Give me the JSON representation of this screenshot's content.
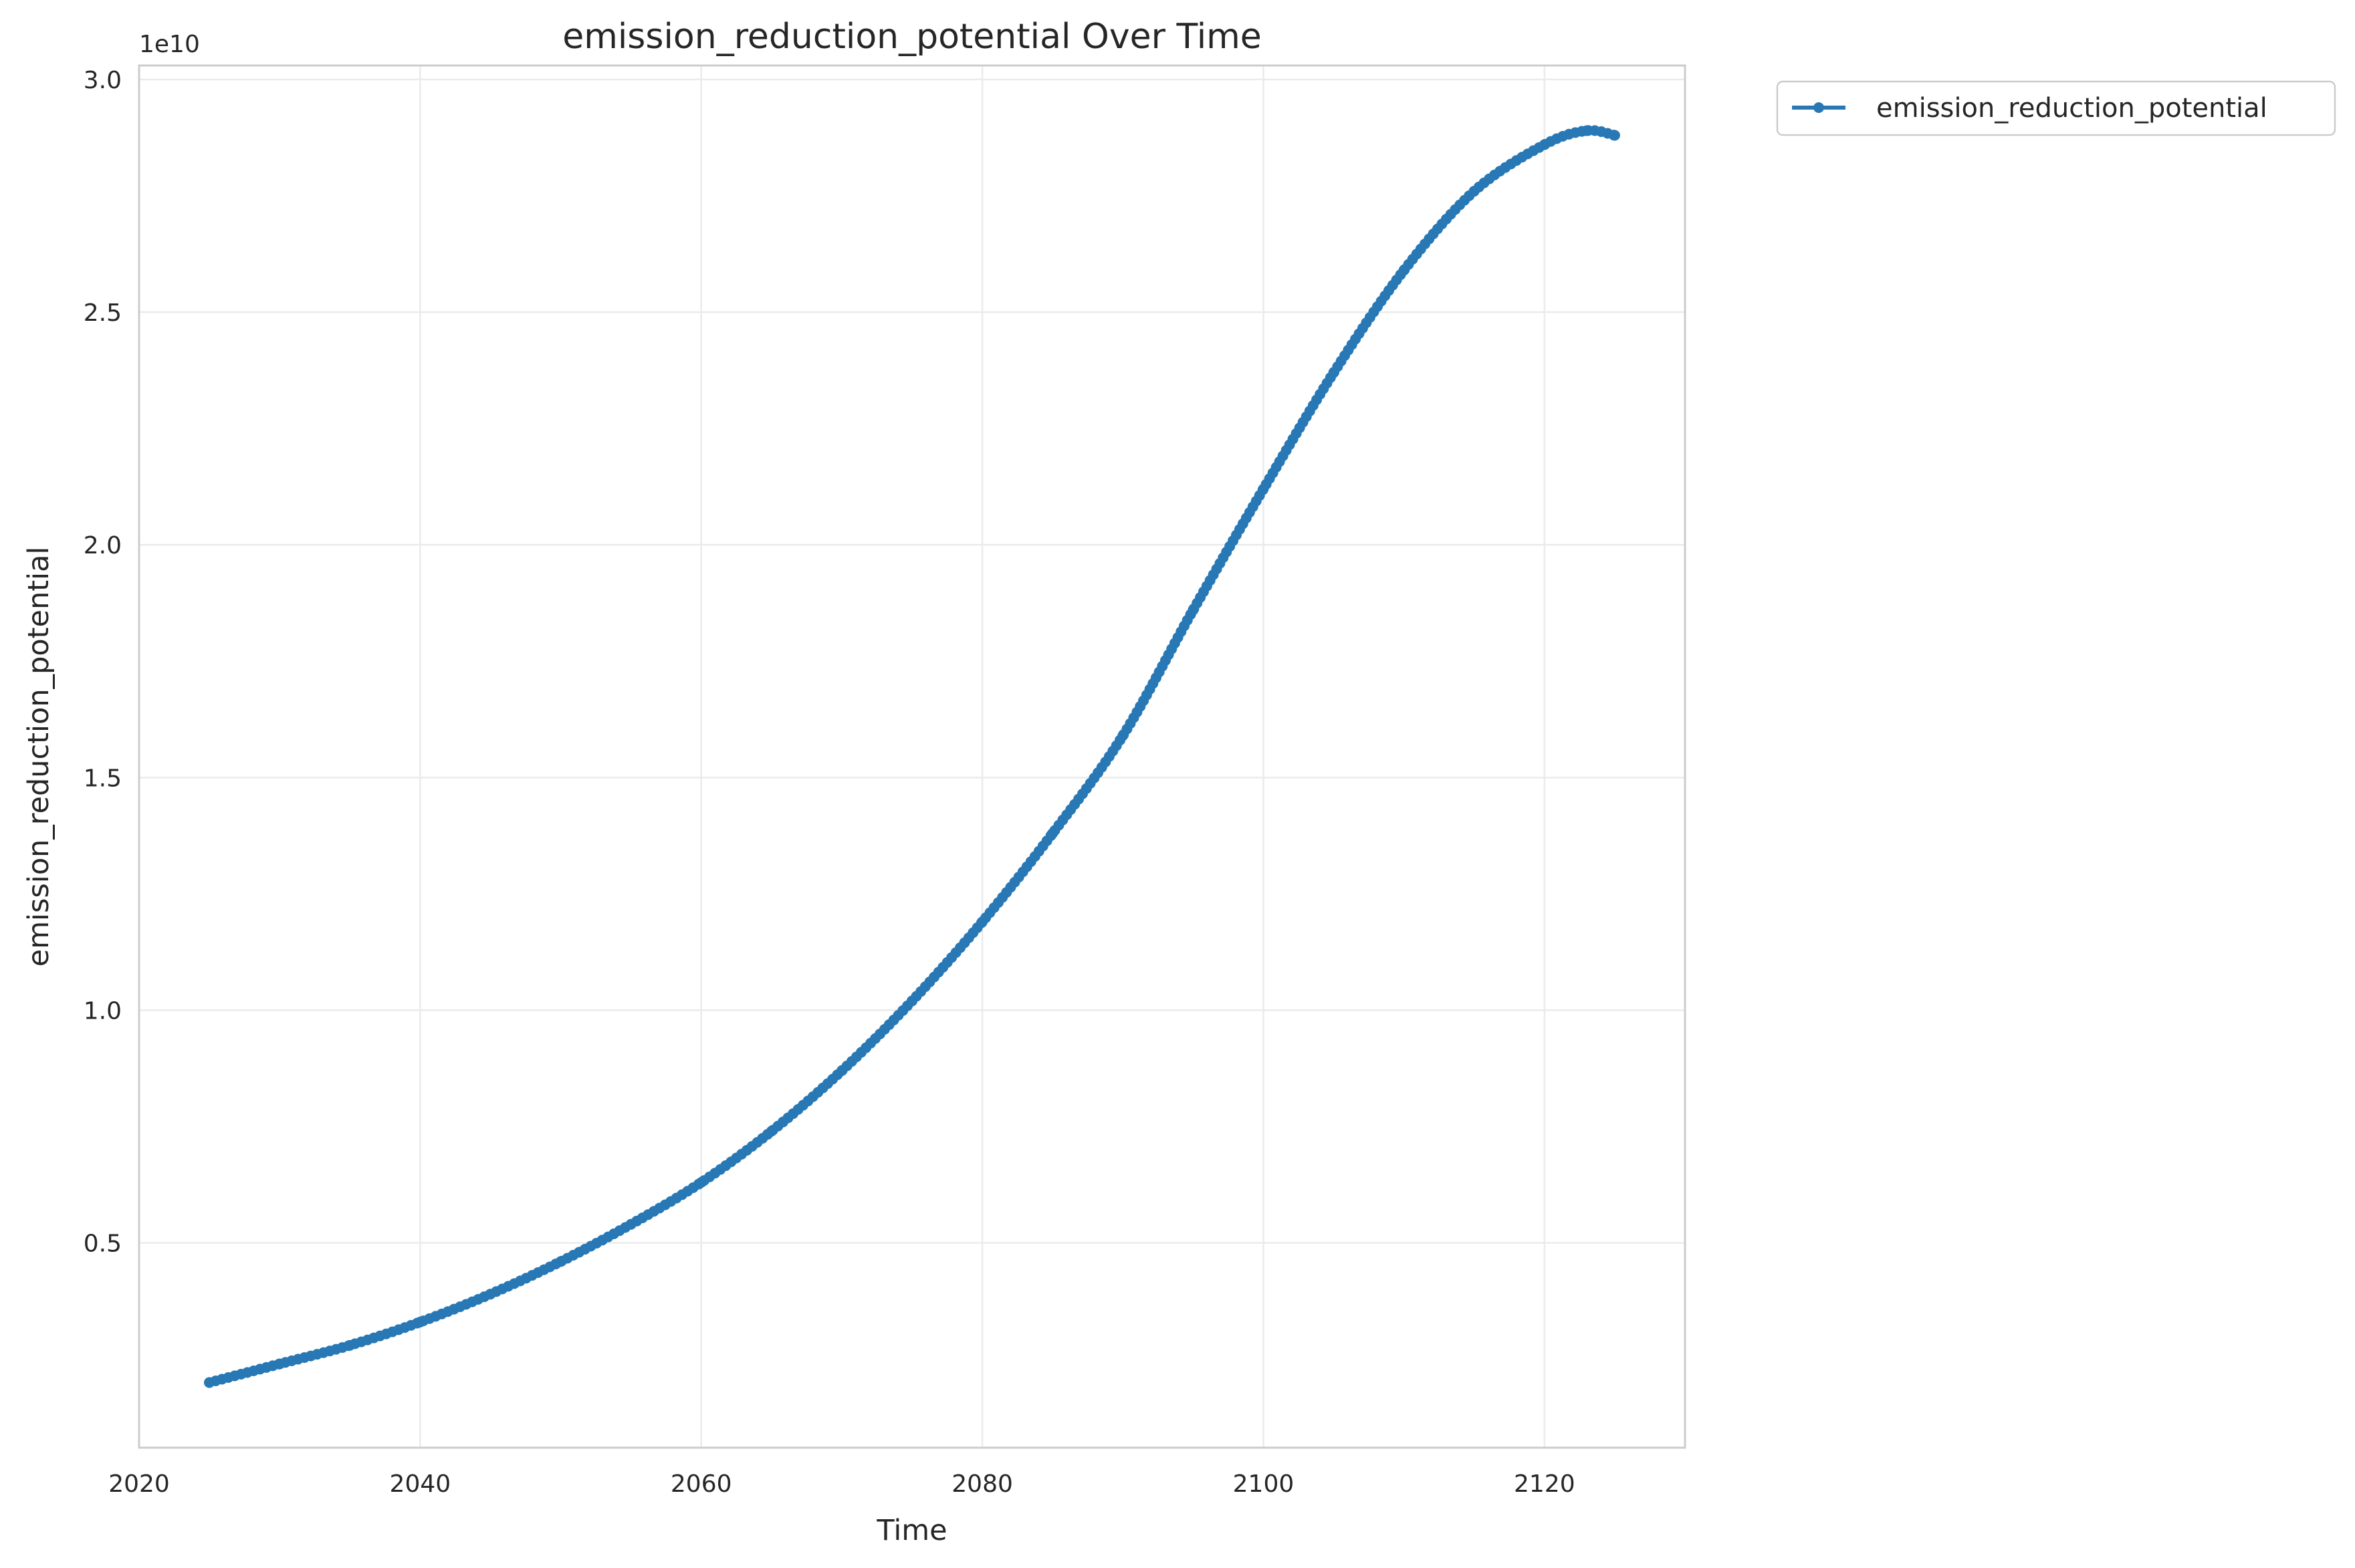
{
  "chart_data": {
    "type": "line",
    "title": "emission_reduction_potential Over Time",
    "xlabel": "Time",
    "ylabel": "emission_reduction_potential",
    "y_offset_label": "1e10",
    "xlim": [
      2020,
      2130
    ],
    "ylim": [
      0.06,
      3.03
    ],
    "y_scale_multiplier": 10000000000,
    "x_ticks": [
      2020,
      2040,
      2060,
      2080,
      2100,
      2120
    ],
    "x_tick_labels": [
      "2020",
      "2040",
      "2060",
      "2080",
      "2100",
      "2120"
    ],
    "y_ticks": [
      0.5,
      1.0,
      1.5,
      2.0,
      2.5,
      3.0
    ],
    "y_tick_labels": [
      "0.5",
      "1.0",
      "1.5",
      "2.0",
      "2.5",
      "3.0"
    ],
    "grid": true,
    "legend_position": "outside-top-right",
    "marker": "circle",
    "series": [
      {
        "name": "emission_reduction_potential",
        "color": "#2878b5",
        "x": [
          2025,
          2030,
          2035,
          2040,
          2045,
          2050,
          2055,
          2060,
          2065,
          2070,
          2075,
          2080,
          2085,
          2090,
          2095,
          2100,
          2105,
          2110,
          2115,
          2120,
          2123,
          2125
        ],
        "y": [
          0.2,
          0.24,
          0.28,
          0.33,
          0.39,
          0.46,
          0.54,
          0.63,
          0.74,
          0.87,
          1.02,
          1.19,
          1.38,
          1.59,
          1.86,
          2.12,
          2.37,
          2.59,
          2.76,
          2.86,
          2.89,
          2.88
        ]
      }
    ]
  }
}
